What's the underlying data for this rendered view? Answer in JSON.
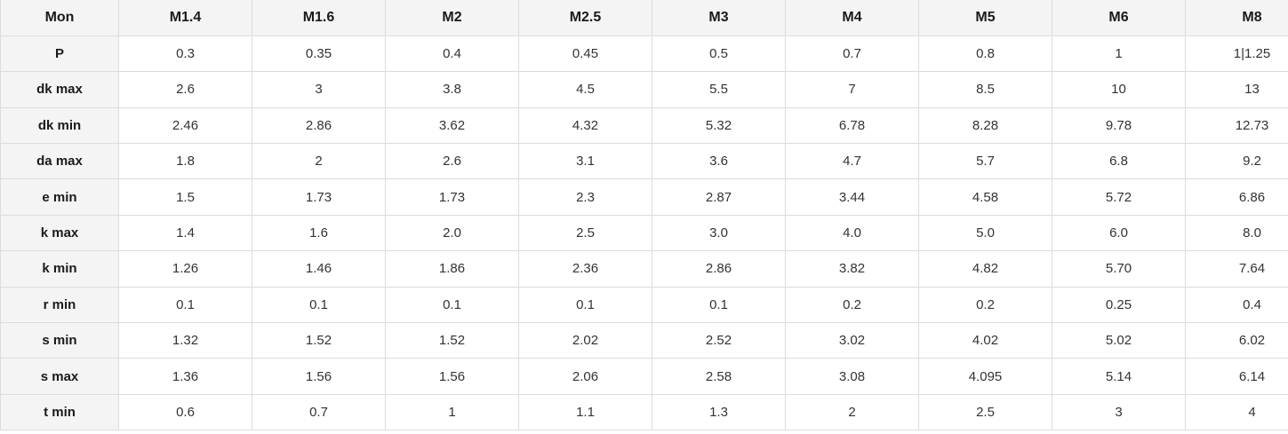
{
  "chart_data": {
    "type": "table",
    "title": "",
    "columns": [
      "Mon",
      "M1.4",
      "M1.6",
      "M2",
      "M2.5",
      "M3",
      "M4",
      "M5",
      "M6",
      "M8"
    ],
    "rows": [
      {
        "label": "P",
        "values": [
          "0.3",
          "0.35",
          "0.4",
          "0.45",
          "0.5",
          "0.7",
          "0.8",
          "1",
          "1|1.25"
        ]
      },
      {
        "label": "dk max",
        "values": [
          "2.6",
          "3",
          "3.8",
          "4.5",
          "5.5",
          "7",
          "8.5",
          "10",
          "13"
        ]
      },
      {
        "label": "dk min",
        "values": [
          "2.46",
          "2.86",
          "3.62",
          "4.32",
          "5.32",
          "6.78",
          "8.28",
          "9.78",
          "12.73"
        ]
      },
      {
        "label": "da max",
        "values": [
          "1.8",
          "2",
          "2.6",
          "3.1",
          "3.6",
          "4.7",
          "5.7",
          "6.8",
          "9.2"
        ]
      },
      {
        "label": "e min",
        "values": [
          "1.5",
          "1.73",
          "1.73",
          "2.3",
          "2.87",
          "3.44",
          "4.58",
          "5.72",
          "6.86"
        ]
      },
      {
        "label": "k max",
        "values": [
          "1.4",
          "1.6",
          "2.0",
          "2.5",
          "3.0",
          "4.0",
          "5.0",
          "6.0",
          "8.0"
        ]
      },
      {
        "label": "k min",
        "values": [
          "1.26",
          "1.46",
          "1.86",
          "2.36",
          "2.86",
          "3.82",
          "4.82",
          "5.70",
          "7.64"
        ]
      },
      {
        "label": "r min",
        "values": [
          "0.1",
          "0.1",
          "0.1",
          "0.1",
          "0.1",
          "0.2",
          "0.2",
          "0.25",
          "0.4"
        ]
      },
      {
        "label": "s min",
        "values": [
          "1.32",
          "1.52",
          "1.52",
          "2.02",
          "2.52",
          "3.02",
          "4.02",
          "5.02",
          "6.02"
        ]
      },
      {
        "label": "s max",
        "values": [
          "1.36",
          "1.56",
          "1.56",
          "2.06",
          "2.58",
          "3.08",
          "4.095",
          "5.14",
          "6.14"
        ]
      },
      {
        "label": "t min",
        "values": [
          "0.6",
          "0.7",
          "1",
          "1.1",
          "1.3",
          "2",
          "2.5",
          "3",
          "4"
        ]
      }
    ],
    "layout": {
      "grid": true,
      "header_row_shaded": true,
      "label_column_shaded": true,
      "last_column_clipped": true
    }
  },
  "colors": {
    "header_bg": "#f4f4f4",
    "border": "#dcdcdc",
    "label_text": "#1a1a1a",
    "value_text": "#333333",
    "cell_bg": "#ffffff"
  }
}
